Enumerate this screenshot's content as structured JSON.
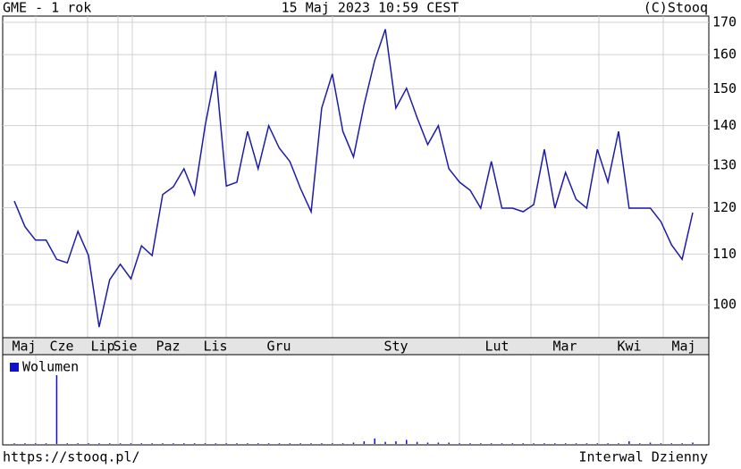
{
  "chart_data": {
    "type": "line",
    "log_scale": true,
    "grid": true,
    "title": "GME - 1 rok",
    "subtitle": "15 Maj 2023 10:59 CEST",
    "credit": "(C)Stooq",
    "footer_left": "https://stooq.pl/",
    "footer_right": "Interwal Dzienny",
    "months": [
      "Maj",
      "Cze",
      "Lip",
      "Sie",
      "Paz",
      "Lis",
      "Gru",
      "Sty",
      "Lut",
      "Mar",
      "Kwi",
      "Maj"
    ],
    "ylim": [
      94,
      172
    ],
    "yticks": [
      100,
      110,
      120,
      130,
      140,
      150,
      160,
      170
    ],
    "series": [
      {
        "name": "GME",
        "color": "#1c1ca8",
        "values": [
          121.5,
          115.8,
          112.9,
          112.9,
          108.9,
          108.2,
          114.8,
          109.7,
          95.9,
          104.8,
          107.9,
          105.0,
          111.7,
          109.7,
          123.0,
          124.8,
          129.1,
          123.0,
          140.0,
          155.1,
          125.0,
          125.9,
          138.5,
          129.1,
          140.0,
          134.2,
          130.9,
          124.4,
          119.1,
          144.7,
          154.3,
          138.5,
          132.0,
          145.7,
          158.2,
          167.8,
          144.7,
          150.2,
          142.1,
          135.1,
          140.0,
          129.1,
          125.9,
          124.0,
          119.9,
          130.9,
          119.9,
          119.9,
          119.1,
          120.7,
          133.9,
          119.9,
          128.2,
          121.9,
          119.9,
          133.9,
          125.9,
          138.5,
          119.9,
          119.9,
          119.9,
          116.9,
          111.9,
          108.9,
          118.9
        ]
      },
      {
        "name": "Wolumen",
        "color": "#1010d0",
        "axis": "y2",
        "values": [
          1,
          1,
          1,
          1,
          100,
          1,
          1,
          1,
          1,
          1,
          1,
          1,
          1,
          1,
          1,
          1,
          1,
          1,
          1,
          1,
          1,
          1,
          1,
          1,
          1,
          1,
          1,
          1,
          1,
          1,
          1,
          1,
          2,
          4,
          8,
          3,
          4,
          6,
          3,
          2,
          2,
          2,
          1,
          1,
          1,
          1,
          1,
          1,
          1,
          1,
          1,
          1,
          1,
          1,
          1,
          1,
          1,
          1,
          4,
          1,
          2,
          1,
          1,
          1,
          2
        ]
      }
    ],
    "y2lim": [
      0,
      100
    ]
  }
}
